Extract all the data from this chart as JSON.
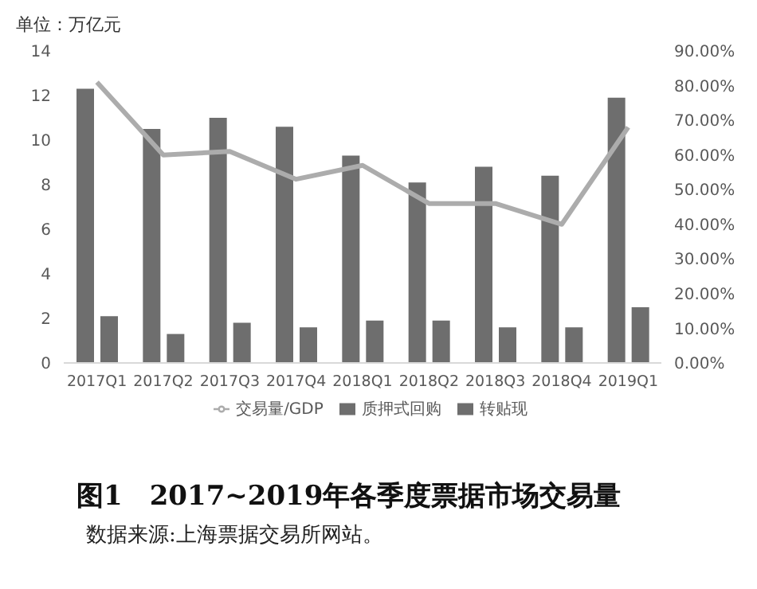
{
  "chart_data": {
    "type": "bar",
    "title": "图1　2017~2019年各季度票据市场交易量",
    "ylabel": "单位：万亿元",
    "annotations": [
      "数据来源:上海票据交易所网站。"
    ],
    "categories": [
      "2017Q1",
      "2017Q2",
      "2017Q3",
      "2017Q4",
      "2018Q1",
      "2018Q2",
      "2018Q3",
      "2018Q4",
      "2019Q1"
    ],
    "series": [
      {
        "name": "转贴现",
        "color": "#6e6e6e",
        "values": [
          12.3,
          10.5,
          11.0,
          10.6,
          9.3,
          8.1,
          8.8,
          8.4,
          11.9
        ]
      },
      {
        "name": "质押式回购",
        "color": "#6e6e6e",
        "values": [
          2.1,
          1.3,
          1.8,
          1.6,
          1.9,
          1.9,
          1.6,
          1.6,
          2.5
        ]
      },
      {
        "name": "交易量/GDP",
        "type": "line",
        "axis": "y2",
        "color": "#acacac",
        "values": [
          81,
          60,
          61,
          53,
          57,
          46,
          46,
          40,
          68
        ]
      }
    ],
    "ylim": [
      0,
      14
    ],
    "yticks": [
      0,
      2,
      4,
      6,
      8,
      10,
      12,
      14
    ],
    "y2lim": [
      0,
      90
    ],
    "y2ticks": [
      {
        "value": 0,
        "label": "0.00%"
      },
      {
        "value": 10,
        "label": "10.00%"
      },
      {
        "value": 20,
        "label": "20.00%"
      },
      {
        "value": 30,
        "label": "30.00%"
      },
      {
        "value": 40,
        "label": "40.00%"
      },
      {
        "value": 50,
        "label": "50.00%"
      },
      {
        "value": 60,
        "label": "60.00%"
      },
      {
        "value": 70,
        "label": "70.00%"
      },
      {
        "value": 80,
        "label": "80.00%"
      },
      {
        "value": 90,
        "label": "90.00%"
      }
    ],
    "legend": "bottom",
    "grid": false,
    "marker": "none"
  }
}
